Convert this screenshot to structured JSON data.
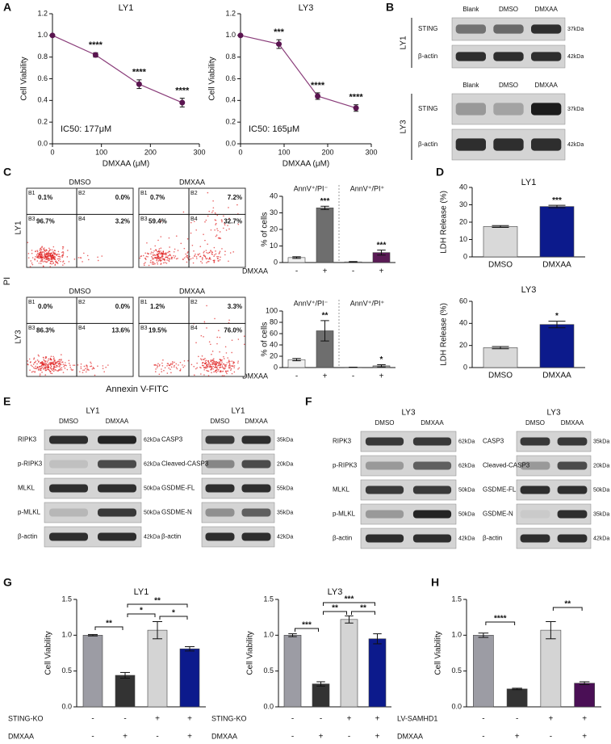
{
  "panel_labels": [
    "A",
    "B",
    "C",
    "D",
    "E",
    "F",
    "G",
    "H"
  ],
  "chart_data": [
    {
      "type": "line",
      "title": "LY1",
      "xlabel": "DMXAA (μM)",
      "ylabel": "Cell Viability",
      "annotation": "IC50: 177μM",
      "x": [
        0,
        88,
        177,
        265
      ],
      "values": [
        1.0,
        0.82,
        0.55,
        0.38
      ],
      "errors": [
        0.01,
        0.02,
        0.04,
        0.04
      ],
      "significance": [
        null,
        "****",
        "****",
        "****"
      ],
      "color": "#8a3d7a",
      "marker_color": "#5a1550",
      "xlim": [
        0,
        300
      ],
      "xticks": [
        0,
        100,
        200,
        300
      ],
      "ylim": [
        0,
        1.2
      ],
      "yticks": [
        {
          "value": 0,
          "label": "0.0"
        },
        {
          "value": 0.2,
          "label": "0.2"
        },
        {
          "value": 0.4,
          "label": "0.4"
        },
        {
          "value": 0.6,
          "label": "0.6"
        },
        {
          "value": 0.8,
          "label": "0.8"
        },
        {
          "value": 1,
          "label": "1.0"
        },
        {
          "value": 1.2,
          "label": "1.2"
        }
      ]
    },
    {
      "type": "line",
      "title": "LY3",
      "xlabel": "DMXAA (μM)",
      "ylabel": "Cell Viability",
      "annotation": "IC50: 165μM",
      "x": [
        0,
        88,
        177,
        265
      ],
      "values": [
        1.0,
        0.92,
        0.44,
        0.33
      ],
      "errors": [
        0.01,
        0.04,
        0.03,
        0.03
      ],
      "significance": [
        null,
        "***",
        "****",
        "****"
      ],
      "color": "#8a3d7a",
      "marker_color": "#5a1550",
      "xlim": [
        0,
        300
      ],
      "xticks": [
        0,
        100,
        200,
        300
      ],
      "ylim": [
        0,
        1.2
      ],
      "yticks": [
        {
          "value": 0,
          "label": "0.0"
        },
        {
          "value": 0.2,
          "label": "0.2"
        },
        {
          "value": 0.4,
          "label": "0.4"
        },
        {
          "value": 0.6,
          "label": "0.6"
        },
        {
          "value": 0.8,
          "label": "0.8"
        },
        {
          "value": 1,
          "label": "1.0"
        },
        {
          "value": 1.2,
          "label": "1.2"
        }
      ]
    },
    {
      "type": "bar",
      "ylabel": "% of cells",
      "groups": [
        "AnnV⁺/PI⁻",
        "AnnV⁺/PI⁺"
      ],
      "factors": [
        {
          "name": "DMXAA",
          "levels": [
            "-",
            "+",
            "-",
            "+"
          ]
        }
      ],
      "values": [
        3,
        33,
        0.4,
        6
      ],
      "errors": [
        0.5,
        1,
        0.2,
        1.5
      ],
      "significance": [
        null,
        "***",
        null,
        "***"
      ],
      "colors": [
        "#f0f0f0",
        "#6e6e6e",
        "#f0f0f0",
        "#5a1a55"
      ],
      "ylim": [
        0,
        40
      ],
      "yticks": [
        0,
        10,
        20,
        30,
        40
      ]
    },
    {
      "type": "bar",
      "ylabel": "% of cells",
      "groups": [
        "AnnV⁺/PI⁻",
        "AnnV⁺/PI⁺"
      ],
      "factors": [
        {
          "name": "DMXAA",
          "levels": [
            "-",
            "+",
            "-",
            "+"
          ]
        }
      ],
      "values": [
        14,
        65,
        0.5,
        3
      ],
      "errors": [
        2,
        18,
        0.2,
        2
      ],
      "significance": [
        null,
        "**",
        null,
        "*"
      ],
      "colors": [
        "#f0f0f0",
        "#6e6e6e",
        "#f0f0f0",
        "#9a9a9a"
      ],
      "ylim": [
        0,
        100
      ],
      "yticks": [
        0,
        20,
        40,
        60,
        80,
        100
      ]
    },
    {
      "type": "bar",
      "title": "LY1",
      "ylabel": "LDH Release (%)",
      "categories": [
        "DMSO",
        "DMXAA"
      ],
      "values": [
        17.5,
        29
      ],
      "errors": [
        0.5,
        0.7
      ],
      "significance": [
        null,
        "***"
      ],
      "colors": [
        "#d9d9d9",
        "#0c1a8c"
      ],
      "ylim": [
        0,
        40
      ],
      "yticks": [
        0,
        10,
        20,
        30,
        40
      ]
    },
    {
      "type": "bar",
      "title": "LY3",
      "ylabel": "LDH Release (%)",
      "categories": [
        "DMSO",
        "DMXAA"
      ],
      "values": [
        18,
        39
      ],
      "errors": [
        1,
        3
      ],
      "significance": [
        null,
        "*"
      ],
      "colors": [
        "#d9d9d9",
        "#0c1a8c"
      ],
      "ylim": [
        0,
        60
      ],
      "yticks": [
        0,
        20,
        40,
        60
      ]
    },
    {
      "type": "bar",
      "title": "LY1",
      "ylabel": "Cell Viability",
      "factors": [
        {
          "name": "STING-KO",
          "levels": [
            "-",
            "-",
            "+",
            "+"
          ]
        },
        {
          "name": "DMXAA",
          "levels": [
            "-",
            "+",
            "-",
            "+"
          ]
        }
      ],
      "values": [
        1.0,
        0.44,
        1.07,
        0.81
      ],
      "errors": [
        0.01,
        0.04,
        0.12,
        0.03
      ],
      "brackets": [
        "**",
        "*",
        "**",
        "*"
      ],
      "colors": [
        "#9c9ca4",
        "#333333",
        "#d4d4d4",
        "#0c1a8c"
      ],
      "ylim": [
        0,
        1.5
      ],
      "yticks": [
        {
          "value": 0,
          "label": "0.0"
        },
        {
          "value": 0.5,
          "label": "0.5"
        },
        {
          "value": 1,
          "label": "1.0"
        },
        {
          "value": 1.5,
          "label": "1.5"
        }
      ]
    },
    {
      "type": "bar",
      "title": "LY3",
      "ylabel": "Cell Viability",
      "factors": [
        {
          "name": "STING-KO",
          "levels": [
            "-",
            "-",
            "+",
            "+"
          ]
        },
        {
          "name": "DMXAA",
          "levels": [
            "-",
            "+",
            "-",
            "+"
          ]
        }
      ],
      "values": [
        1.0,
        0.32,
        1.22,
        0.95
      ],
      "errors": [
        0.02,
        0.03,
        0.05,
        0.07
      ],
      "brackets": [
        "***",
        "**",
        "***",
        "**"
      ],
      "colors": [
        "#9c9ca4",
        "#333333",
        "#d4d4d4",
        "#0c1a8c"
      ],
      "ylim": [
        0,
        1.5
      ],
      "yticks": [
        {
          "value": 0,
          "label": "0.0"
        },
        {
          "value": 0.5,
          "label": "0.5"
        },
        {
          "value": 1,
          "label": "1.0"
        },
        {
          "value": 1.5,
          "label": "1.5"
        }
      ]
    },
    {
      "type": "bar",
      "ylabel": "Cell Viability",
      "factors": [
        {
          "name": "LV-SAMHD1",
          "levels": [
            "-",
            "-",
            "+",
            "+"
          ]
        },
        {
          "name": "DMXAA",
          "levels": [
            "-",
            "+",
            "-",
            "+"
          ]
        }
      ],
      "values": [
        1.0,
        0.25,
        1.07,
        0.33
      ],
      "errors": [
        0.03,
        0.01,
        0.12,
        0.02
      ],
      "brackets": [
        "****",
        "**"
      ],
      "colors": [
        "#9c9ca4",
        "#333333",
        "#d4d4d4",
        "#4a0f55"
      ],
      "ylim": [
        0,
        1.5
      ],
      "yticks": [
        {
          "value": 0,
          "label": "0.0"
        },
        {
          "value": 0.5,
          "label": "0.5"
        },
        {
          "value": 1,
          "label": "1.0"
        },
        {
          "value": 1.5,
          "label": "1.5"
        }
      ]
    }
  ],
  "flow": {
    "ylabel": "PI",
    "xlabel": "Annexin V-FITC",
    "rows": [
      "LY1",
      "LY3"
    ],
    "quadrant_names": [
      "B1",
      "B2",
      "B3",
      "B4"
    ],
    "plots": [
      {
        "title": "DMSO",
        "quadrants": [
          "0.1%",
          "0.0%",
          "96.7%",
          "3.2%"
        ]
      },
      {
        "title": "DMXAA",
        "quadrants": [
          "0.7%",
          "7.2%",
          "59.4%",
          "32.7%"
        ]
      },
      {
        "title": "DMSO",
        "quadrants": [
          "0.0%",
          "0.0%",
          "86.3%",
          "13.6%"
        ]
      },
      {
        "title": "DMXAA",
        "quadrants": [
          "1.2%",
          "3.3%",
          "19.5%",
          "76.0%"
        ]
      }
    ]
  },
  "blots": [
    {
      "row": "LY1",
      "columns": [
        "Blank",
        "DMSO",
        "DMXAA"
      ],
      "rows": [
        {
          "name": "STING",
          "size": "37kDa"
        },
        {
          "name": "β-actin",
          "size": "42kDa"
        }
      ]
    },
    {
      "row": "LY3",
      "columns": [
        "Blank",
        "DMSO",
        "DMXAA"
      ],
      "rows": [
        {
          "name": "STING",
          "size": "37kDa"
        },
        {
          "name": "β-actin",
          "size": "42kDa"
        }
      ]
    },
    {
      "title": "LY1",
      "columns": [
        "DMSO",
        "DMXAA"
      ],
      "rows": [
        {
          "name": "RIPK3",
          "size": "62kDa"
        },
        {
          "name": "p-RIPK3",
          "size": "62kDa"
        },
        {
          "name": "MLKL",
          "size": "50kDa"
        },
        {
          "name": "p-MLKL",
          "size": "50kDa"
        },
        {
          "name": "β-actin",
          "size": "42kDa"
        }
      ]
    },
    {
      "title": "LY1",
      "columns": [
        "DMSO",
        "DMXAA"
      ],
      "rows": [
        {
          "name": "CASP3",
          "size": "35kDa"
        },
        {
          "name": "Cleaved-CASP3",
          "size": "20kDa"
        },
        {
          "name": "GSDME-FL",
          "size": "55kDa"
        },
        {
          "name": "GSDME-N",
          "size": "35kDa"
        },
        {
          "name": "β-actin",
          "size": "42kDa"
        }
      ]
    },
    {
      "title": "LY3",
      "columns": [
        "DMSO",
        "DMXAA"
      ],
      "rows": [
        {
          "name": "RIPK3",
          "size": "62kDa"
        },
        {
          "name": "p-RIPK3",
          "size": "62kDa"
        },
        {
          "name": "MLKL",
          "size": "50kDa"
        },
        {
          "name": "p-MLKL",
          "size": "50kDa"
        },
        {
          "name": "β-actin",
          "size": "42kDa"
        }
      ]
    },
    {
      "title": "LY3",
      "columns": [
        "DMSO",
        "DMXAA"
      ],
      "rows": [
        {
          "name": "CASP3",
          "size": "35kDa"
        },
        {
          "name": "Cleaved-CASP3",
          "size": "20kDa"
        },
        {
          "name": "GSDME-FL",
          "size": "50kDa"
        },
        {
          "name": "GSDME-N",
          "size": "35kDa"
        },
        {
          "name": "β-actin",
          "size": "42kDa"
        }
      ]
    }
  ]
}
